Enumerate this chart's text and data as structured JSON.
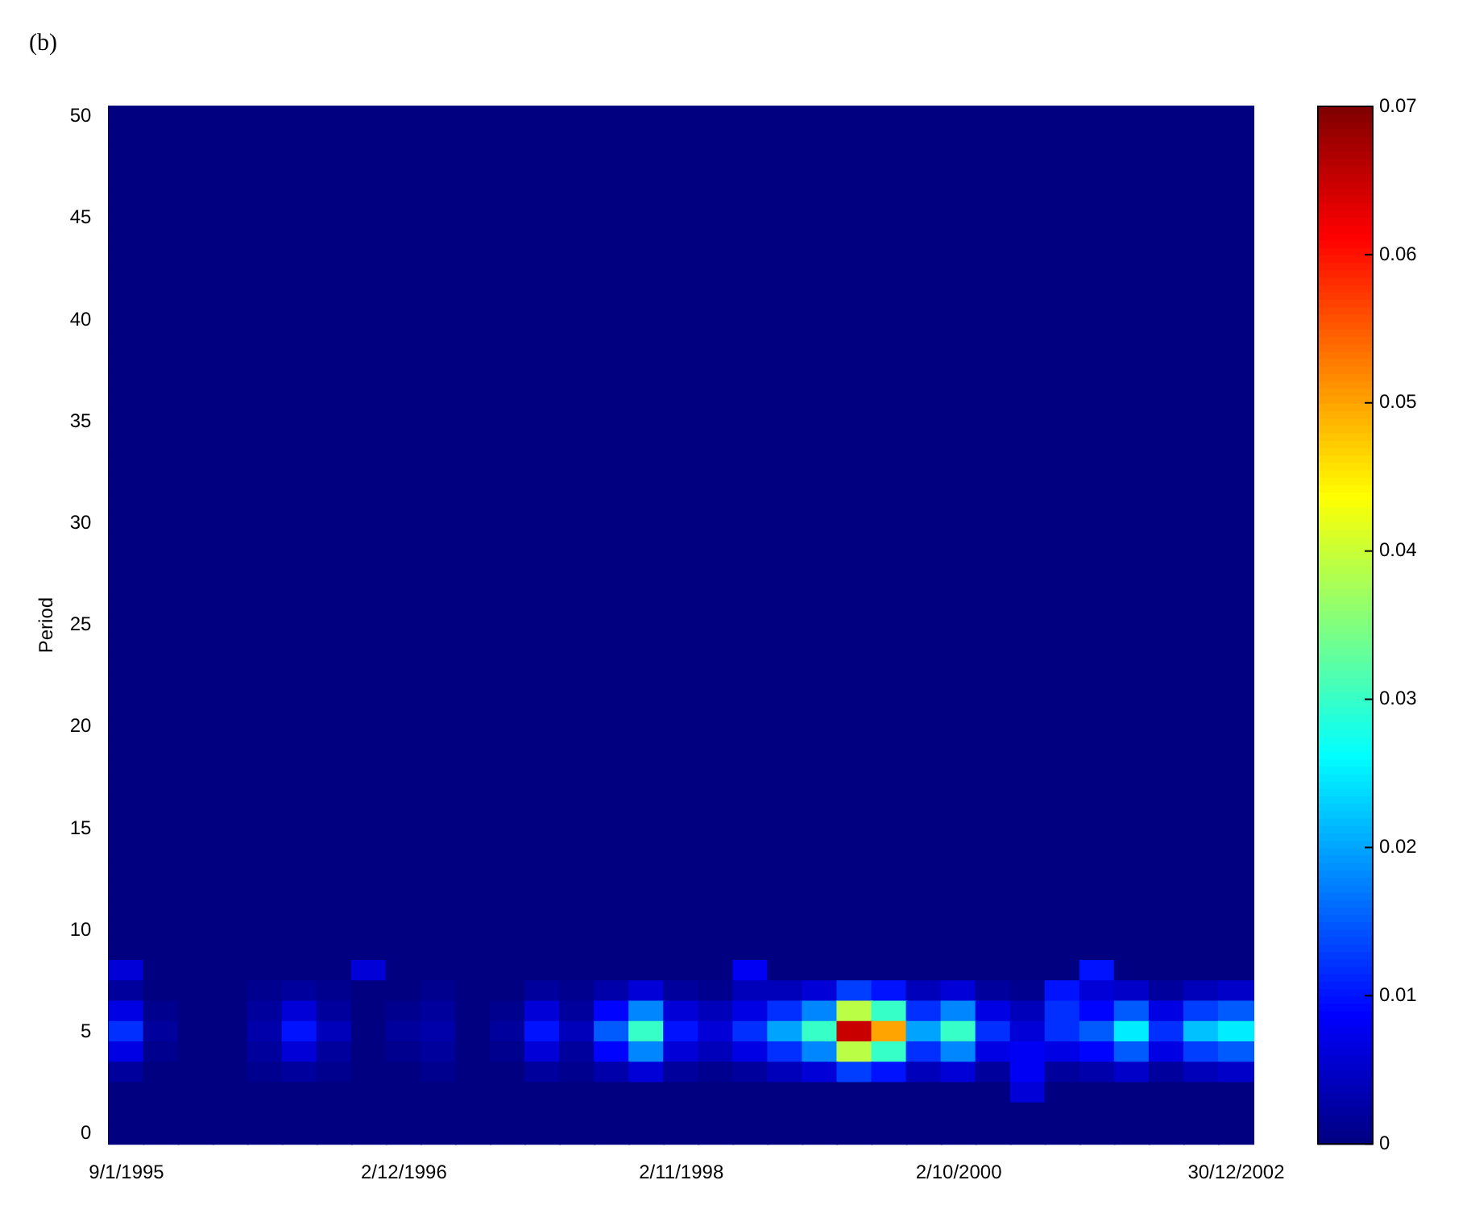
{
  "chart_data": {
    "type": "heatmap",
    "title": "(b)",
    "ylabel": "Period",
    "categories": [
      "9/1/1995",
      null,
      null,
      null,
      null,
      null,
      null,
      null,
      "2/12/1996",
      null,
      null,
      null,
      null,
      null,
      null,
      null,
      "2/11/1998",
      null,
      null,
      null,
      null,
      null,
      null,
      null,
      "2/10/2000",
      null,
      null,
      null,
      null,
      null,
      null,
      null,
      "30/12/2002"
    ],
    "y_categories": [
      "50",
      null,
      null,
      null,
      null,
      "45",
      null,
      null,
      null,
      null,
      "40",
      null,
      null,
      null,
      null,
      "35",
      null,
      null,
      null,
      null,
      "30",
      null,
      null,
      null,
      null,
      "25",
      null,
      null,
      null,
      null,
      "20",
      null,
      null,
      null,
      null,
      "15",
      null,
      null,
      null,
      null,
      "10",
      null,
      null,
      null,
      null,
      "5",
      null,
      null,
      null,
      null,
      "0"
    ],
    "cells": [
      [
        0,
        0,
        0,
        0,
        0,
        0,
        0,
        0,
        0,
        0,
        0,
        0,
        0,
        0,
        0,
        0,
        0,
        0,
        0,
        0,
        0,
        0,
        0,
        0,
        0,
        0,
        0,
        0,
        0,
        0,
        0,
        0,
        0
      ],
      [
        0,
        0,
        0,
        0,
        0,
        0,
        0,
        0,
        0,
        0,
        0,
        0,
        0,
        0,
        0,
        0,
        0,
        0,
        0,
        0,
        0,
        0,
        0,
        0,
        0,
        0,
        0,
        0,
        0,
        0,
        0,
        0,
        0
      ],
      [
        0,
        0,
        0,
        0,
        0,
        0,
        0,
        0,
        0,
        0,
        0,
        0,
        0,
        0,
        0,
        0,
        0,
        0,
        0,
        0,
        0,
        0,
        0,
        0,
        0,
        0,
        0,
        0,
        0,
        0,
        0,
        0,
        0
      ],
      [
        0,
        0,
        0,
        0,
        0,
        0,
        0,
        0,
        0,
        0,
        0,
        0,
        0,
        0,
        0,
        0,
        0,
        0,
        0,
        0,
        0,
        0,
        0,
        0,
        0,
        0,
        0,
        0,
        0,
        0,
        0,
        0,
        0
      ],
      [
        0,
        0,
        0,
        0,
        0,
        0,
        0,
        0,
        0,
        0,
        0,
        0,
        0,
        0,
        0,
        0,
        0,
        0,
        0,
        0,
        0,
        0,
        0,
        0,
        0,
        0,
        0,
        0,
        0,
        0,
        0,
        0,
        0
      ],
      [
        0,
        0,
        0,
        0,
        0,
        0,
        0,
        0,
        0,
        0,
        0,
        0,
        0,
        0,
        0,
        0,
        0,
        0,
        0,
        0,
        0,
        0,
        0,
        0,
        0,
        0,
        0,
        0,
        0,
        0,
        0,
        0,
        0
      ],
      [
        0,
        0,
        0,
        0,
        0,
        0,
        0,
        0,
        0,
        0,
        0,
        0,
        0,
        0,
        0,
        0,
        0,
        0,
        0,
        0,
        0,
        0,
        0,
        0,
        0,
        0,
        0,
        0,
        0,
        0,
        0,
        0,
        0
      ],
      [
        0,
        0,
        0,
        0,
        0,
        0,
        0,
        0,
        0,
        0,
        0,
        0,
        0,
        0,
        0,
        0,
        0,
        0,
        0,
        0,
        0,
        0,
        0,
        0,
        0,
        0,
        0,
        0,
        0,
        0,
        0,
        0,
        0
      ],
      [
        0,
        0,
        0,
        0,
        0,
        0,
        0,
        0,
        0,
        0,
        0,
        0,
        0,
        0,
        0,
        0,
        0,
        0,
        0,
        0,
        0,
        0,
        0,
        0,
        0,
        0,
        0,
        0,
        0,
        0,
        0,
        0,
        0
      ],
      [
        0,
        0,
        0,
        0,
        0,
        0,
        0,
        0,
        0,
        0,
        0,
        0,
        0,
        0,
        0,
        0,
        0,
        0,
        0,
        0,
        0,
        0,
        0,
        0,
        0,
        0,
        0,
        0,
        0,
        0,
        0,
        0,
        0
      ],
      [
        0,
        0,
        0,
        0,
        0,
        0,
        0,
        0,
        0,
        0,
        0,
        0,
        0,
        0,
        0,
        0,
        0,
        0,
        0,
        0,
        0,
        0,
        0,
        0,
        0,
        0,
        0,
        0,
        0,
        0,
        0,
        0,
        0
      ],
      [
        0,
        0,
        0,
        0,
        0,
        0,
        0,
        0,
        0,
        0,
        0,
        0,
        0,
        0,
        0,
        0,
        0,
        0,
        0,
        0,
        0,
        0,
        0,
        0,
        0,
        0,
        0,
        0,
        0,
        0,
        0,
        0,
        0
      ],
      [
        0,
        0,
        0,
        0,
        0,
        0,
        0,
        0,
        0,
        0,
        0,
        0,
        0,
        0,
        0,
        0,
        0,
        0,
        0,
        0,
        0,
        0,
        0,
        0,
        0,
        0,
        0,
        0,
        0,
        0,
        0,
        0,
        0
      ],
      [
        0,
        0,
        0,
        0,
        0,
        0,
        0,
        0,
        0,
        0,
        0,
        0,
        0,
        0,
        0,
        0,
        0,
        0,
        0,
        0,
        0,
        0,
        0,
        0,
        0,
        0,
        0,
        0,
        0,
        0,
        0,
        0,
        0
      ],
      [
        0,
        0,
        0,
        0,
        0,
        0,
        0,
        0,
        0,
        0,
        0,
        0,
        0,
        0,
        0,
        0,
        0,
        0,
        0,
        0,
        0,
        0,
        0,
        0,
        0,
        0,
        0,
        0,
        0,
        0,
        0,
        0,
        0
      ],
      [
        0,
        0,
        0,
        0,
        0,
        0,
        0,
        0,
        0,
        0,
        0,
        0,
        0,
        0,
        0,
        0,
        0,
        0,
        0,
        0,
        0,
        0,
        0,
        0,
        0,
        0,
        0,
        0,
        0,
        0,
        0,
        0,
        0
      ],
      [
        0,
        0,
        0,
        0,
        0,
        0,
        0,
        0,
        0,
        0,
        0,
        0,
        0,
        0,
        0,
        0,
        0,
        0,
        0,
        0,
        0,
        0,
        0,
        0,
        0,
        0,
        0,
        0,
        0,
        0,
        0,
        0,
        0
      ],
      [
        0,
        0,
        0,
        0,
        0,
        0,
        0,
        0,
        0,
        0,
        0,
        0,
        0,
        0,
        0,
        0,
        0,
        0,
        0,
        0,
        0,
        0,
        0,
        0,
        0,
        0,
        0,
        0,
        0,
        0,
        0,
        0,
        0
      ],
      [
        0,
        0,
        0,
        0,
        0,
        0,
        0,
        0,
        0,
        0,
        0,
        0,
        0,
        0,
        0,
        0,
        0,
        0,
        0,
        0,
        0,
        0,
        0,
        0,
        0,
        0,
        0,
        0,
        0,
        0,
        0,
        0,
        0
      ],
      [
        0,
        0,
        0,
        0,
        0,
        0,
        0,
        0,
        0,
        0,
        0,
        0,
        0,
        0,
        0,
        0,
        0,
        0,
        0,
        0,
        0,
        0,
        0,
        0,
        0,
        0,
        0,
        0,
        0,
        0,
        0,
        0,
        0
      ],
      [
        0,
        0,
        0,
        0,
        0,
        0,
        0,
        0,
        0,
        0,
        0,
        0,
        0,
        0,
        0,
        0,
        0,
        0,
        0,
        0,
        0,
        0,
        0,
        0,
        0,
        0,
        0,
        0,
        0,
        0,
        0,
        0,
        0
      ],
      [
        0,
        0,
        0,
        0,
        0,
        0,
        0,
        0,
        0,
        0,
        0,
        0,
        0,
        0,
        0,
        0,
        0,
        0,
        0,
        0,
        0,
        0,
        0,
        0,
        0,
        0,
        0,
        0,
        0,
        0,
        0,
        0,
        0
      ],
      [
        0,
        0,
        0,
        0,
        0,
        0,
        0,
        0,
        0,
        0,
        0,
        0,
        0,
        0,
        0,
        0,
        0,
        0,
        0,
        0,
        0,
        0,
        0,
        0,
        0,
        0,
        0,
        0,
        0,
        0,
        0,
        0,
        0
      ],
      [
        0,
        0,
        0,
        0,
        0,
        0,
        0,
        0,
        0,
        0,
        0,
        0,
        0,
        0,
        0,
        0,
        0,
        0,
        0,
        0,
        0,
        0,
        0,
        0,
        0,
        0,
        0,
        0,
        0,
        0,
        0,
        0,
        0
      ],
      [
        0,
        0,
        0,
        0,
        0,
        0,
        0,
        0,
        0,
        0,
        0,
        0,
        0,
        0,
        0,
        0,
        0,
        0,
        0,
        0,
        0,
        0,
        0,
        0,
        0,
        0,
        0,
        0,
        0,
        0,
        0,
        0,
        0
      ],
      [
        0,
        0,
        0,
        0,
        0,
        0,
        0,
        0,
        0,
        0,
        0,
        0,
        0,
        0,
        0,
        0,
        0,
        0,
        0,
        0,
        0,
        0,
        0,
        0,
        0,
        0,
        0,
        0,
        0,
        0,
        0,
        0,
        0
      ],
      [
        0,
        0,
        0,
        0,
        0,
        0,
        0,
        0,
        0,
        0,
        0,
        0,
        0,
        0,
        0,
        0,
        0,
        0,
        0,
        0,
        0,
        0,
        0,
        0,
        0,
        0,
        0,
        0,
        0,
        0,
        0,
        0,
        0
      ],
      [
        0,
        0,
        0,
        0,
        0,
        0,
        0,
        0,
        0,
        0,
        0,
        0,
        0,
        0,
        0,
        0,
        0,
        0,
        0,
        0,
        0,
        0,
        0,
        0,
        0,
        0,
        0,
        0,
        0,
        0,
        0,
        0,
        0
      ],
      [
        0,
        0,
        0,
        0,
        0,
        0,
        0,
        0,
        0,
        0,
        0,
        0,
        0,
        0,
        0,
        0,
        0,
        0,
        0,
        0,
        0,
        0,
        0,
        0,
        0,
        0,
        0,
        0,
        0,
        0,
        0,
        0,
        0
      ],
      [
        0,
        0,
        0,
        0,
        0,
        0,
        0,
        0,
        0,
        0,
        0,
        0,
        0,
        0,
        0,
        0,
        0,
        0,
        0,
        0,
        0,
        0,
        0,
        0,
        0,
        0,
        0,
        0,
        0,
        0,
        0,
        0,
        0
      ],
      [
        0,
        0,
        0,
        0,
        0,
        0,
        0,
        0,
        0,
        0,
        0,
        0,
        0,
        0,
        0,
        0,
        0,
        0,
        0,
        0,
        0,
        0,
        0,
        0,
        0,
        0,
        0,
        0,
        0,
        0,
        0,
        0,
        0
      ],
      [
        0,
        0,
        0,
        0,
        0,
        0,
        0,
        0,
        0,
        0,
        0,
        0,
        0,
        0,
        0,
        0,
        0,
        0,
        0,
        0,
        0,
        0,
        0,
        0,
        0,
        0,
        0,
        0,
        0,
        0,
        0,
        0,
        0
      ],
      [
        0,
        0,
        0,
        0,
        0,
        0,
        0,
        0,
        0,
        0,
        0,
        0,
        0,
        0,
        0,
        0,
        0,
        0,
        0,
        0,
        0,
        0,
        0,
        0,
        0,
        0,
        0,
        0,
        0,
        0,
        0,
        0,
        0
      ],
      [
        0,
        0,
        0,
        0,
        0,
        0,
        0,
        0,
        0,
        0,
        0,
        0,
        0,
        0,
        0,
        0,
        0,
        0,
        0,
        0,
        0,
        0,
        0,
        0,
        0,
        0,
        0,
        0,
        0,
        0,
        0,
        0,
        0
      ],
      [
        0,
        0,
        0,
        0,
        0,
        0,
        0,
        0,
        0,
        0,
        0,
        0,
        0,
        0,
        0,
        0,
        0,
        0,
        0,
        0,
        0,
        0,
        0,
        0,
        0,
        0,
        0,
        0,
        0,
        0,
        0,
        0,
        0
      ],
      [
        0,
        0,
        0,
        0,
        0,
        0,
        0,
        0,
        0,
        0,
        0,
        0,
        0,
        0,
        0,
        0,
        0,
        0,
        0,
        0,
        0,
        0,
        0,
        0,
        0,
        0,
        0,
        0,
        0,
        0,
        0,
        0,
        0
      ],
      [
        0,
        0,
        0,
        0,
        0,
        0,
        0,
        0,
        0,
        0,
        0,
        0,
        0,
        0,
        0,
        0,
        0,
        0,
        0,
        0,
        0,
        0,
        0,
        0,
        0,
        0,
        0,
        0,
        0,
        0,
        0,
        0,
        0
      ],
      [
        0,
        0,
        0,
        0,
        0,
        0,
        0,
        0,
        0,
        0,
        0,
        0,
        0,
        0,
        0,
        0,
        0,
        0,
        0,
        0,
        0,
        0,
        0,
        0,
        0,
        0,
        0,
        0,
        0,
        0,
        0,
        0,
        0
      ],
      [
        0,
        0,
        0,
        0,
        0,
        0,
        0,
        0,
        0,
        0,
        0,
        0,
        0,
        0,
        0,
        0,
        0,
        0,
        0,
        0,
        0,
        0,
        0,
        0,
        0,
        0,
        0,
        0,
        0,
        0,
        0,
        0,
        0
      ],
      [
        0,
        0,
        0,
        0,
        0,
        0,
        0,
        0,
        0,
        0,
        0,
        0,
        0,
        0,
        0,
        0,
        0,
        0,
        0,
        0,
        0,
        0,
        0,
        0,
        0,
        0,
        0,
        0,
        0,
        0,
        0,
        0,
        0
      ],
      [
        0,
        0,
        0,
        0,
        0,
        0,
        0,
        0,
        0,
        0,
        0,
        0,
        0,
        0,
        0,
        0,
        0,
        0,
        0,
        0,
        0,
        0,
        0,
        0,
        0,
        0,
        0,
        0,
        0,
        0,
        0,
        0,
        0
      ],
      [
        0,
        0,
        0,
        0,
        0,
        0,
        0,
        0,
        0,
        0,
        0,
        0,
        0,
        0,
        0,
        0,
        0,
        0,
        0,
        0,
        0,
        0,
        0,
        0,
        0,
        0,
        0,
        0,
        0,
        0,
        0,
        0,
        0
      ],
      [
        0.006,
        0,
        0,
        0,
        0,
        0,
        0,
        0.006,
        0,
        0,
        0,
        0,
        0,
        0,
        0,
        0,
        0,
        0,
        0.008,
        0,
        0,
        0,
        0,
        0,
        0,
        0,
        0,
        0,
        0.01,
        0,
        0,
        0,
        0
      ],
      [
        0.002,
        0,
        0,
        0,
        0.001,
        0.002,
        0.001,
        0,
        0,
        0.001,
        0,
        0,
        0.002,
        0.001,
        0.003,
        0.006,
        0.002,
        0.001,
        0.004,
        0.004,
        0.006,
        0.013,
        0.01,
        0.004,
        0.006,
        0.002,
        0.001,
        0.01,
        0.006,
        0.005,
        0.002,
        0.004,
        0.005
      ],
      [
        0.007,
        0.001,
        0,
        0,
        0.002,
        0.006,
        0.002,
        0,
        0.001,
        0.002,
        0,
        0.001,
        0.006,
        0.002,
        0.009,
        0.018,
        0.006,
        0.004,
        0.007,
        0.012,
        0.018,
        0.039,
        0.03,
        0.012,
        0.018,
        0.007,
        0.004,
        0.012,
        0.009,
        0.015,
        0.007,
        0.013,
        0.015
      ],
      [
        0.012,
        0.002,
        0,
        0,
        0.003,
        0.01,
        0.004,
        0,
        0.002,
        0.003,
        0,
        0.002,
        0.01,
        0.004,
        0.015,
        0.03,
        0.01,
        0.006,
        0.012,
        0.02,
        0.03,
        0.065,
        0.05,
        0.02,
        0.03,
        0.012,
        0.006,
        0.012,
        0.015,
        0.025,
        0.012,
        0.022,
        0.025
      ],
      [
        0.007,
        0.001,
        0,
        0,
        0.002,
        0.006,
        0.002,
        0,
        0.001,
        0.002,
        0,
        0.001,
        0.006,
        0.002,
        0.009,
        0.018,
        0.006,
        0.004,
        0.007,
        0.012,
        0.018,
        0.039,
        0.03,
        0.012,
        0.018,
        0.007,
        0.008,
        0.007,
        0.009,
        0.015,
        0.007,
        0.013,
        0.015
      ],
      [
        0.002,
        0,
        0,
        0,
        0.001,
        0.002,
        0.001,
        0,
        0,
        0.001,
        0,
        0,
        0.002,
        0.001,
        0.003,
        0.006,
        0.002,
        0.001,
        0.002,
        0.004,
        0.006,
        0.013,
        0.01,
        0.004,
        0.006,
        0.002,
        0.008,
        0.002,
        0.003,
        0.005,
        0.002,
        0.004,
        0.005
      ],
      [
        0,
        0,
        0,
        0,
        0,
        0,
        0,
        0,
        0,
        0,
        0,
        0,
        0,
        0,
        0,
        0,
        0,
        0,
        0,
        0,
        0,
        0,
        0,
        0,
        0,
        0,
        0.006,
        0,
        0,
        0,
        0,
        0,
        0
      ],
      [
        0,
        0,
        0,
        0,
        0,
        0,
        0,
        0,
        0,
        0,
        0,
        0,
        0,
        0,
        0,
        0,
        0,
        0,
        0,
        0,
        0,
        0,
        0,
        0,
        0,
        0,
        0,
        0,
        0,
        0,
        0,
        0,
        0
      ],
      [
        0,
        0,
        0,
        0,
        0,
        0,
        0,
        0,
        0,
        0,
        0,
        0,
        0,
        0,
        0,
        0,
        0,
        0,
        0,
        0,
        0,
        0,
        0,
        0,
        0,
        0,
        0,
        0,
        0,
        0,
        0,
        0,
        0
      ]
    ],
    "clim": [
      0,
      0.07
    ],
    "cticks": [
      0,
      0.01,
      0.02,
      0.03,
      0.04,
      0.05,
      0.06,
      0.07
    ]
  }
}
